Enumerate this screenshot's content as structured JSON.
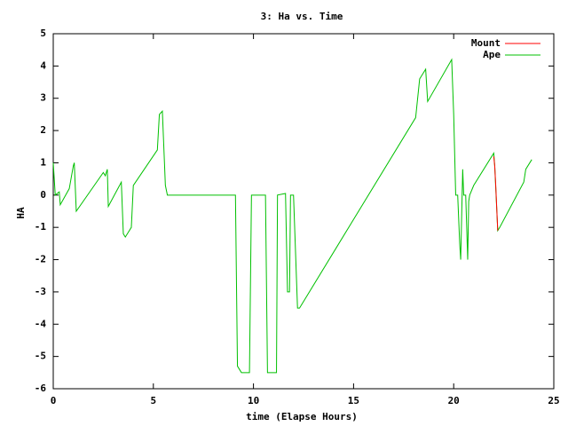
{
  "chart_data": {
    "type": "line",
    "title": "3: Ha vs. Time",
    "x_label": "time (Elapse Hours)",
    "y_label": "HA",
    "xlim": [
      0,
      25
    ],
    "xticks": [
      0,
      5,
      10,
      15,
      20,
      25
    ],
    "ylim": [
      -6,
      5
    ],
    "yticks": [
      -6,
      -5,
      -4,
      -3,
      -2,
      -1,
      0,
      1,
      2,
      3,
      4,
      5
    ],
    "legend": "top-right",
    "series": [
      {
        "name": "Mount",
        "color": "#ff0000",
        "x": [
          22.0,
          22.05,
          22.1,
          22.2
        ],
        "values": [
          1.2,
          0.9,
          0.3,
          -1.1
        ]
      },
      {
        "name": "Ape",
        "color": "#00c000",
        "x": [
          0,
          0.1,
          0.3,
          0.35,
          0.8,
          1.0,
          1.05,
          1.15,
          2.5,
          2.6,
          2.7,
          2.75,
          3.4,
          3.5,
          3.6,
          3.9,
          4.0,
          5.2,
          5.3,
          5.45,
          5.6,
          5.7,
          9.1,
          9.2,
          9.4,
          9.8,
          9.9,
          10.6,
          10.7,
          11.15,
          11.2,
          11.6,
          11.7,
          11.8,
          11.85,
          12.0,
          12.2,
          12.3,
          18.1,
          18.3,
          18.6,
          18.7,
          19.9,
          20.0,
          20.1,
          20.2,
          20.3,
          20.35,
          20.45,
          20.5,
          20.6,
          20.7,
          20.75,
          20.8,
          21.0,
          22.0,
          22.05,
          22.2,
          22.3,
          23.5,
          23.6,
          23.9
        ],
        "values": [
          1.0,
          0,
          0.1,
          -0.3,
          0.2,
          0.9,
          1.0,
          -0.5,
          0.7,
          0.6,
          0.8,
          -0.35,
          0.4,
          -1.2,
          -1.3,
          -1.0,
          0.3,
          1.4,
          2.5,
          2.6,
          0.3,
          0,
          0,
          -5.3,
          -5.5,
          -5.5,
          0,
          0,
          -5.5,
          -5.5,
          0,
          0.05,
          -3.0,
          -3.0,
          0,
          0,
          -3.5,
          -3.5,
          2.4,
          3.6,
          3.9,
          2.9,
          4.2,
          2.5,
          0,
          0,
          -1.5,
          -2.0,
          0.8,
          0,
          0,
          -2.0,
          -0.2,
          0,
          0.3,
          1.3,
          0.9,
          -1.1,
          -1.0,
          0.4,
          0.8,
          1.1
        ]
      }
    ]
  }
}
